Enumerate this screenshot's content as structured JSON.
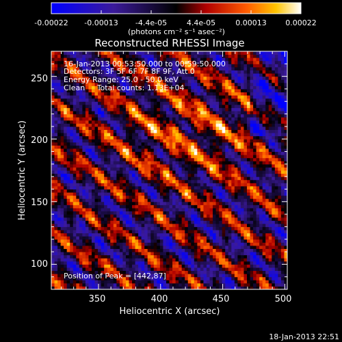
{
  "chart_data": {
    "type": "heatmap",
    "title": "Reconstructed RHESSI Image",
    "xlabel": "Heliocentric X (arcsec)",
    "ylabel": "Heliocentric Y (arcsec)",
    "xlim": [
      312,
      502
    ],
    "ylim": [
      80,
      270
    ],
    "xticks": [
      350,
      400,
      450,
      500
    ],
    "yticks": [
      100,
      150,
      200,
      250
    ],
    "colorbar": {
      "ticks": [
        "-0.00022",
        "-0.00013",
        "-4.4e-05",
        "4.4e-05",
        "0.00013",
        "0.00022"
      ],
      "unit_label": "(photons cm⁻² s⁻¹ asec⁻²)",
      "range": [
        -0.00022,
        0.00022
      ]
    },
    "annotations": [
      "16-Jan-2013 00:53:50.000 to 00:59:50.000",
      "Detectors: 3F 5F 6F 7F 8F 9F, Att 0",
      "Energy Range: 25.0 - 50.0 keV",
      "Clean     Total counts: 1.13E+04"
    ],
    "peak_label": "Position of Peak = [442,87]",
    "footer_timestamp": "18-Jan-2013 22:51",
    "colors": {
      "background": "#000000",
      "text": "#ffffff"
    }
  }
}
